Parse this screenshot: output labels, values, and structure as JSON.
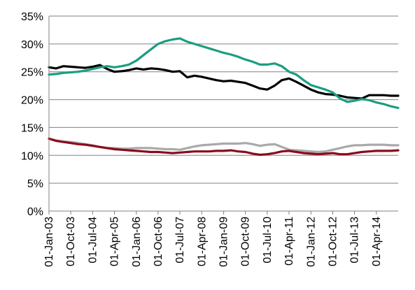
{
  "chart_data": {
    "type": "line",
    "title": "",
    "xlabel": "",
    "ylabel": "",
    "ylim": [
      0,
      35
    ],
    "xlim": [
      "2003-01-01",
      "2014-12-31"
    ],
    "grid": "horizontal",
    "legend": "none",
    "y_ticks": [
      "0%",
      "5%",
      "10%",
      "15%",
      "20%",
      "25%",
      "30%",
      "35%"
    ],
    "x_ticks": [
      "01-Jan-03",
      "01-Oct-03",
      "01-Jul-04",
      "01-Apr-05",
      "01-Jan-06",
      "01-Oct-06",
      "01-Jul-07",
      "01-Apr-08",
      "01-Jan-09",
      "01-Oct-09",
      "01-Jul-10",
      "01-Apr-11",
      "01-Jan-12",
      "01-Oct-12",
      "01-Jul-13",
      "01-Apr-14"
    ],
    "x": [
      "2003-01-01",
      "2003-04-01",
      "2003-07-01",
      "2003-10-01",
      "2004-01-01",
      "2004-04-01",
      "2004-07-01",
      "2004-10-01",
      "2005-01-01",
      "2005-04-01",
      "2005-07-01",
      "2005-10-01",
      "2006-01-01",
      "2006-04-01",
      "2006-07-01",
      "2006-10-01",
      "2007-01-01",
      "2007-04-01",
      "2007-07-01",
      "2007-10-01",
      "2008-01-01",
      "2008-04-01",
      "2008-07-01",
      "2008-10-01",
      "2009-01-01",
      "2009-04-01",
      "2009-07-01",
      "2009-10-01",
      "2010-01-01",
      "2010-04-01",
      "2010-07-01",
      "2010-10-01",
      "2011-01-01",
      "2011-04-01",
      "2011-07-01",
      "2011-10-01",
      "2012-01-01",
      "2012-04-01",
      "2012-07-01",
      "2012-10-01",
      "2013-01-01",
      "2013-04-01",
      "2013-07-01",
      "2013-10-01",
      "2014-01-01",
      "2014-04-01",
      "2014-07-01",
      "2014-10-01",
      "2014-12-31"
    ],
    "series": [
      {
        "color": "#000000",
        "values": [
          25.8,
          25.6,
          26.0,
          25.9,
          25.8,
          25.7,
          25.9,
          26.2,
          25.5,
          25.0,
          25.1,
          25.3,
          25.6,
          25.4,
          25.6,
          25.5,
          25.3,
          25.0,
          25.1,
          24.0,
          24.3,
          24.1,
          23.8,
          23.5,
          23.3,
          23.4,
          23.2,
          23.0,
          22.5,
          22.0,
          21.8,
          22.5,
          23.5,
          23.8,
          23.2,
          22.5,
          21.8,
          21.3,
          21.0,
          20.9,
          20.7,
          20.4,
          20.3,
          20.2,
          20.8,
          20.8,
          20.8,
          20.7,
          20.7
        ]
      },
      {
        "color": "#1a9e80",
        "values": [
          24.5,
          24.6,
          24.8,
          24.9,
          25.0,
          25.2,
          25.5,
          25.8,
          26.0,
          25.8,
          26.0,
          26.3,
          27.0,
          28.0,
          29.0,
          30.0,
          30.5,
          30.8,
          31.0,
          30.4,
          30.0,
          29.6,
          29.2,
          28.8,
          28.4,
          28.1,
          27.7,
          27.2,
          26.8,
          26.3,
          26.3,
          26.5,
          26.0,
          25.0,
          24.5,
          23.5,
          22.6,
          22.2,
          21.8,
          21.3,
          20.2,
          19.6,
          19.8,
          20.1,
          19.9,
          19.5,
          19.2,
          18.8,
          18.5
        ]
      },
      {
        "color": "#a9a9a9",
        "values": [
          13.0,
          12.7,
          12.5,
          12.4,
          12.2,
          12.0,
          11.8,
          11.5,
          11.3,
          11.3,
          11.2,
          11.2,
          11.3,
          11.3,
          11.3,
          11.2,
          11.1,
          11.1,
          11.0,
          11.3,
          11.6,
          11.8,
          11.9,
          12.0,
          12.1,
          12.1,
          12.1,
          12.2,
          12.0,
          11.7,
          11.9,
          12.0,
          11.5,
          11.0,
          10.9,
          10.8,
          10.7,
          10.6,
          10.7,
          11.0,
          11.3,
          11.6,
          11.8,
          11.8,
          11.9,
          11.9,
          11.9,
          11.8,
          11.8
        ]
      },
      {
        "color": "#8b0a1e",
        "values": [
          13.0,
          12.6,
          12.4,
          12.2,
          12.0,
          11.9,
          11.7,
          11.5,
          11.3,
          11.1,
          11.0,
          10.9,
          10.8,
          10.7,
          10.6,
          10.6,
          10.5,
          10.4,
          10.5,
          10.6,
          10.7,
          10.7,
          10.7,
          10.8,
          10.8,
          10.9,
          10.7,
          10.6,
          10.3,
          10.1,
          10.2,
          10.4,
          10.7,
          10.8,
          10.6,
          10.4,
          10.3,
          10.2,
          10.3,
          10.4,
          10.2,
          10.2,
          10.4,
          10.6,
          10.7,
          10.8,
          10.8,
          10.8,
          10.9
        ]
      }
    ]
  }
}
